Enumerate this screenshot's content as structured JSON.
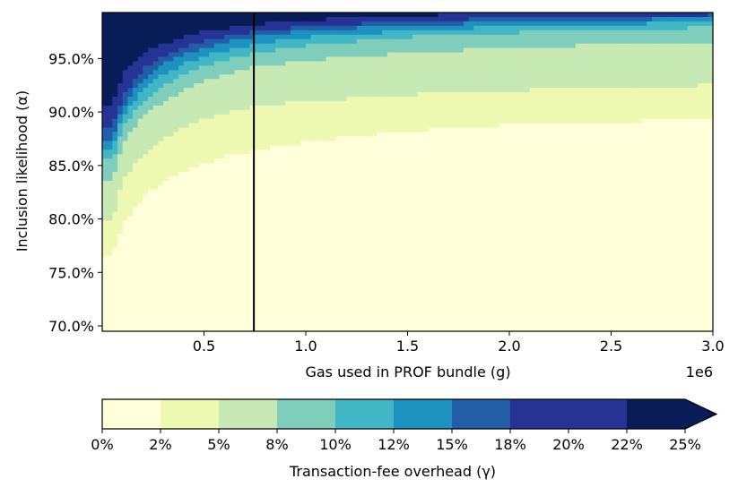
{
  "chart_data": {
    "type": "heatmap",
    "title": "",
    "xlabel": "Gas used in PROF bundle (g)",
    "ylabel": "Inclusion likelihood (α)",
    "x_offset_label": "1e6",
    "xlim": [
      0.0,
      3.0
    ],
    "ylim": [
      0.695,
      0.993
    ],
    "x_ticks": [
      0.5,
      1.0,
      1.5,
      2.0,
      2.5,
      3.0
    ],
    "x_tick_labels": [
      "0.5",
      "1.0",
      "1.5",
      "2.0",
      "2.5",
      "3.0"
    ],
    "y_ticks": [
      0.7,
      0.75,
      0.8,
      0.85,
      0.9,
      0.95
    ],
    "y_tick_labels": [
      "70.0%",
      "75.0%",
      "80.0%",
      "85.0%",
      "90.0%",
      "95.0%"
    ],
    "vertical_line_x": 0.745,
    "colorbar": {
      "label": "Transaction-fee overhead (γ)",
      "tick_labels": [
        "0%",
        "2%",
        "5%",
        "8%",
        "10%",
        "12%",
        "15%",
        "18%",
        "20%",
        "22%",
        "25%"
      ],
      "colors": [
        "#ffffd9",
        "#edf8b1",
        "#c7e9b4",
        "#7fcdbb",
        "#41b6c4",
        "#1d91c0",
        "#225ea8",
        "#253494",
        "#253494",
        "#081d58"
      ],
      "extend": "max",
      "over_color": "#081d58"
    },
    "level_boundaries_by_x": {
      "x": [
        0.05,
        0.1,
        0.2,
        0.3,
        0.4,
        0.5,
        0.6,
        0.75,
        1.0,
        1.5,
        2.0,
        2.5,
        3.0
      ],
      "boundaries": [
        [
          0.765,
          0.8,
          0.835,
          0.855,
          0.865,
          0.875,
          0.885,
          0.895,
          0.905
        ],
        [
          0.795,
          0.835,
          0.87,
          0.885,
          0.895,
          0.905,
          0.915,
          0.925,
          0.935
        ],
        [
          0.82,
          0.86,
          0.895,
          0.91,
          0.92,
          0.93,
          0.94,
          0.95,
          0.955
        ],
        [
          0.835,
          0.875,
          0.91,
          0.925,
          0.935,
          0.945,
          0.952,
          0.958,
          0.963
        ],
        [
          0.845,
          0.885,
          0.92,
          0.935,
          0.945,
          0.953,
          0.96,
          0.965,
          0.97
        ],
        [
          0.852,
          0.893,
          0.928,
          0.943,
          0.952,
          0.96,
          0.966,
          0.971,
          0.975
        ],
        [
          0.858,
          0.899,
          0.935,
          0.949,
          0.957,
          0.965,
          0.97,
          0.975,
          0.978
        ],
        [
          0.864,
          0.905,
          0.942,
          0.955,
          0.963,
          0.97,
          0.975,
          0.979,
          0.982
        ],
        [
          0.872,
          0.91,
          0.948,
          0.962,
          0.97,
          0.976,
          0.98,
          0.984,
          0.986
        ],
        [
          0.882,
          0.916,
          0.955,
          0.97,
          0.976,
          0.981,
          0.985,
          0.988,
          0.99
        ],
        [
          0.888,
          0.92,
          0.96,
          0.974,
          0.98,
          0.984,
          0.988,
          0.991,
          0.993
        ],
        [
          0.891,
          0.923,
          0.963,
          0.977,
          0.982,
          0.986,
          0.989,
          0.993,
          0.995
        ],
        [
          0.893,
          0.925,
          0.966,
          0.979,
          0.984,
          0.988,
          0.991,
          0.995,
          0.997
        ]
      ]
    }
  }
}
